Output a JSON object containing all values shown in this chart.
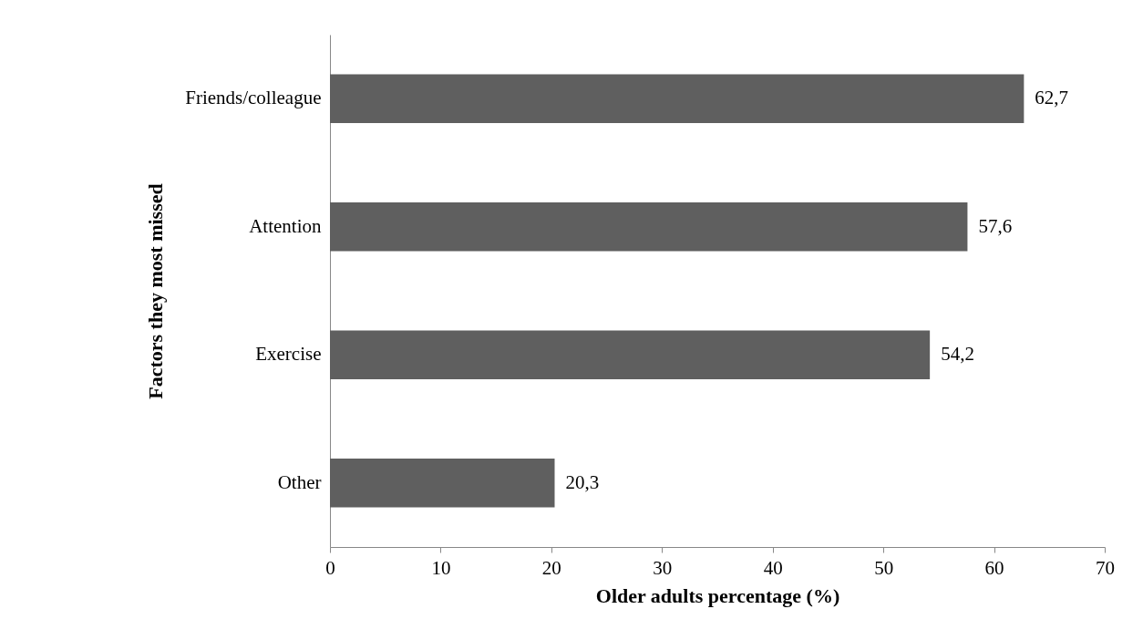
{
  "chart_data": {
    "type": "bar",
    "orientation": "horizontal",
    "xlabel": "Older adults percentage (%)",
    "ylabel": "Factors they most missed",
    "categories": [
      "Friends/colleague",
      "Attention",
      "Exercise",
      "Other"
    ],
    "values": [
      62.7,
      57.6,
      54.2,
      20.3
    ],
    "value_labels": [
      "62,7",
      "57,6",
      "54,2",
      "20,3"
    ],
    "color": "#5f5f5f",
    "xlim": [
      0,
      70
    ],
    "xticks": [
      0,
      10,
      20,
      30,
      40,
      50,
      60,
      70
    ],
    "grid": false
  }
}
